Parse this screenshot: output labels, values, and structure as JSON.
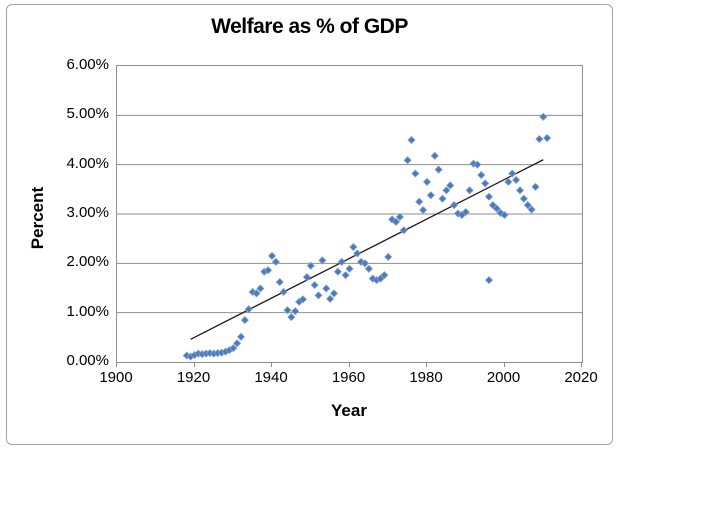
{
  "chart_data": {
    "type": "scatter",
    "title": "Welfare as % of GDP",
    "xlabel": "Year",
    "ylabel": "Percent",
    "xlim": [
      1900,
      2020
    ],
    "ylim": [
      0,
      6
    ],
    "x_ticks": [
      1900,
      1920,
      1940,
      1960,
      1980,
      2000,
      2020
    ],
    "y_ticks": [
      0,
      1,
      2,
      3,
      4,
      5,
      6
    ],
    "y_tick_labels": [
      "0.00%",
      "1.00%",
      "2.00%",
      "3.00%",
      "4.00%",
      "5.00%",
      "6.00%"
    ],
    "grid": "horizontal",
    "legend": "none",
    "marker": {
      "shape": "diamond",
      "fill": "#4a7ab8",
      "edge": "#7fa1ce",
      "size": 7
    },
    "trendline": {
      "type": "linear",
      "color": "#1a1a1a",
      "x1": 1919,
      "y1": 0.46,
      "x2": 2010,
      "y2": 4.1
    },
    "points": [
      [
        1918,
        0.13
      ],
      [
        1919,
        0.11
      ],
      [
        1920,
        0.14
      ],
      [
        1921,
        0.17
      ],
      [
        1922,
        0.16
      ],
      [
        1923,
        0.17
      ],
      [
        1924,
        0.18
      ],
      [
        1925,
        0.17
      ],
      [
        1926,
        0.18
      ],
      [
        1927,
        0.19
      ],
      [
        1928,
        0.21
      ],
      [
        1929,
        0.24
      ],
      [
        1930,
        0.28
      ],
      [
        1931,
        0.38
      ],
      [
        1932,
        0.51
      ],
      [
        1933,
        0.85
      ],
      [
        1934,
        1.07
      ],
      [
        1935,
        1.42
      ],
      [
        1936,
        1.39
      ],
      [
        1937,
        1.49
      ],
      [
        1938,
        1.83
      ],
      [
        1939,
        1.86
      ],
      [
        1940,
        2.15
      ],
      [
        1941,
        2.03
      ],
      [
        1942,
        1.62
      ],
      [
        1943,
        1.42
      ],
      [
        1944,
        1.05
      ],
      [
        1945,
        0.91
      ],
      [
        1946,
        1.03
      ],
      [
        1947,
        1.22
      ],
      [
        1948,
        1.27
      ],
      [
        1949,
        1.72
      ],
      [
        1950,
        1.95
      ],
      [
        1951,
        1.56
      ],
      [
        1952,
        1.35
      ],
      [
        1953,
        2.06
      ],
      [
        1954,
        1.49
      ],
      [
        1955,
        1.28
      ],
      [
        1956,
        1.39
      ],
      [
        1957,
        1.83
      ],
      [
        1958,
        2.03
      ],
      [
        1959,
        1.76
      ],
      [
        1960,
        1.89
      ],
      [
        1961,
        2.33
      ],
      [
        1962,
        2.2
      ],
      [
        1963,
        2.03
      ],
      [
        1964,
        2.0
      ],
      [
        1965,
        1.89
      ],
      [
        1966,
        1.69
      ],
      [
        1967,
        1.66
      ],
      [
        1968,
        1.69
      ],
      [
        1969,
        1.76
      ],
      [
        1970,
        2.13
      ],
      [
        1971,
        2.89
      ],
      [
        1972,
        2.84
      ],
      [
        1973,
        2.94
      ],
      [
        1974,
        2.67
      ],
      [
        1975,
        4.09
      ],
      [
        1976,
        4.5
      ],
      [
        1977,
        3.82
      ],
      [
        1978,
        3.25
      ],
      [
        1979,
        3.08
      ],
      [
        1980,
        3.65
      ],
      [
        1981,
        3.38
      ],
      [
        1982,
        4.18
      ],
      [
        1983,
        3.9
      ],
      [
        1984,
        3.31
      ],
      [
        1985,
        3.48
      ],
      [
        1986,
        3.58
      ],
      [
        1987,
        3.18
      ],
      [
        1988,
        3.01
      ],
      [
        1989,
        2.98
      ],
      [
        1990,
        3.04
      ],
      [
        1991,
        3.48
      ],
      [
        1992,
        4.02
      ],
      [
        1993,
        4.0
      ],
      [
        1994,
        3.79
      ],
      [
        1995,
        3.62
      ],
      [
        1996,
        3.35
      ],
      [
        1996,
        1.66
      ],
      [
        1997,
        3.18
      ],
      [
        1998,
        3.11
      ],
      [
        1999,
        3.02
      ],
      [
        2000,
        2.98
      ],
      [
        2001,
        3.65
      ],
      [
        2002,
        3.82
      ],
      [
        2003,
        3.69
      ],
      [
        2004,
        3.48
      ],
      [
        2005,
        3.31
      ],
      [
        2006,
        3.18
      ],
      [
        2007,
        3.09
      ],
      [
        2008,
        3.55
      ],
      [
        2009,
        4.52
      ],
      [
        2010,
        4.97
      ],
      [
        2011,
        4.54
      ]
    ]
  },
  "colors": {
    "frame_border": "#a3a3a3",
    "plot_border": "#8e8e8e",
    "gridline": "#8e8e8e",
    "text": "#000000",
    "background": "#ffffff"
  }
}
